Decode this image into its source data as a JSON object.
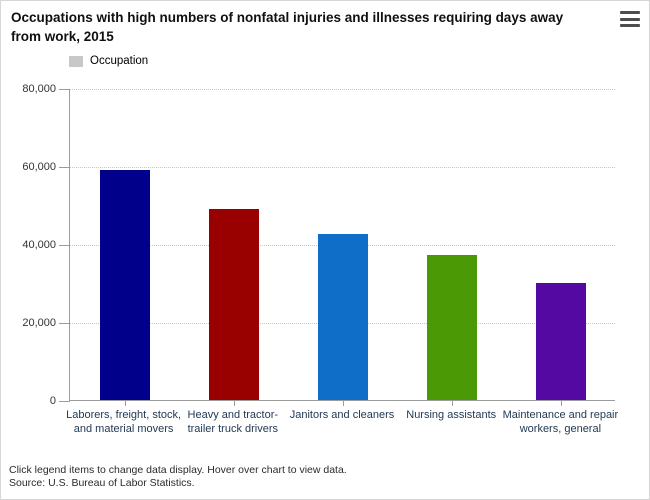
{
  "title": "Occupations with high numbers of nonfatal injuries and illnesses requiring days away from work, 2015",
  "legend": {
    "label": "Occupation",
    "swatch_color": "#c8c8c8"
  },
  "chart_data": {
    "type": "bar",
    "title": "Occupations with high numbers of nonfatal injuries and illnesses requiring days away from work, 2015",
    "categories": [
      "Laborers, freight, stock, and material movers",
      "Heavy and tractor-trailer truck drivers",
      "Janitors and cleaners",
      "Nursing assistants",
      "Maintenance and repair workers, general"
    ],
    "values": [
      59000,
      49000,
      42500,
      37300,
      29900
    ],
    "bar_colors": [
      "#00008B",
      "#990000",
      "#0E6EC8",
      "#4C9906",
      "#5409A3"
    ],
    "xlabel": "",
    "ylabel": "",
    "ylim": [
      0,
      80000
    ],
    "ytick_interval": 20000,
    "ytick_labels": [
      "0",
      "20,000",
      "40,000",
      "60,000",
      "80,000"
    ],
    "grid": "horizontal-dotted",
    "legend_position": "top-left",
    "legend_entries": [
      "Occupation"
    ]
  },
  "footer": {
    "hint": "Click legend items to change data display. Hover over chart to view data.",
    "source": "Source: U.S. Bureau of Labor Statistics."
  }
}
